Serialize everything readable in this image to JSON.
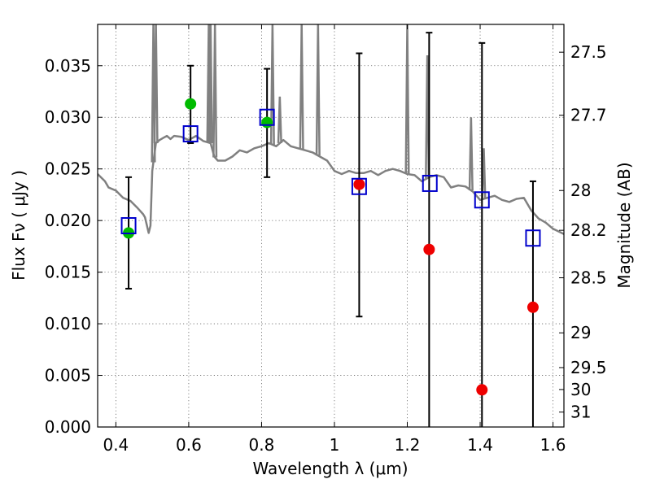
{
  "chart_data": {
    "type": "scatter",
    "title": "",
    "xlabel": "Wavelength  λ (μm)",
    "ylabel": "Flux  Fν  ( μJy )",
    "ylabel_right": "Magnitude (AB)",
    "xlim": [
      0.35,
      1.63
    ],
    "ylim": [
      0.0,
      0.039
    ],
    "grid": true,
    "x_ticks": [
      0.4,
      0.6,
      0.8,
      1.0,
      1.2,
      1.4,
      1.6
    ],
    "x_tick_labels": [
      "0.4",
      "0.6",
      "0.8",
      "1",
      "1.2",
      "1.4",
      "1.6"
    ],
    "y_ticks": [
      0.0,
      0.005,
      0.01,
      0.015,
      0.02,
      0.025,
      0.03,
      0.035
    ],
    "y_tick_labels": [
      "0.000",
      "0.005",
      "0.010",
      "0.015",
      "0.020",
      "0.025",
      "0.030",
      "0.035"
    ],
    "mag_ticks": [
      {
        "label": "27.5",
        "mag": 27.5
      },
      {
        "label": "27.7",
        "mag": 27.7
      },
      {
        "label": "28",
        "mag": 28.0
      },
      {
        "label": "28.2",
        "mag": 28.2
      },
      {
        "label": "28.5",
        "mag": 28.5
      },
      {
        "label": "29",
        "mag": 29.0
      },
      {
        "label": "29.5",
        "mag": 29.5
      },
      {
        "label": "30",
        "mag": 30.0
      },
      {
        "label": "31",
        "mag": 31.0
      }
    ],
    "colors": {
      "model": "#808080",
      "observed_green": "#00bb00",
      "observed_red": "#ee0000",
      "synthetic": "#0000cc",
      "errorbar": "#000000"
    },
    "series": [
      {
        "name": "model spectrum",
        "kind": "line",
        "x": [
          0.35,
          0.37,
          0.38,
          0.4,
          0.42,
          0.44,
          0.46,
          0.475,
          0.48,
          0.49,
          0.495,
          0.5,
          0.505,
          0.51,
          0.52,
          0.53,
          0.54,
          0.55,
          0.56,
          0.58,
          0.6,
          0.62,
          0.64,
          0.65,
          0.66,
          0.67,
          0.68,
          0.7,
          0.72,
          0.74,
          0.76,
          0.78,
          0.8,
          0.82,
          0.84,
          0.86,
          0.88,
          0.9,
          0.92,
          0.94,
          0.96,
          0.98,
          1.0,
          1.02,
          1.04,
          1.06,
          1.08,
          1.1,
          1.12,
          1.14,
          1.16,
          1.18,
          1.2,
          1.22,
          1.24,
          1.26,
          1.28,
          1.3,
          1.32,
          1.34,
          1.36,
          1.38,
          1.4,
          1.42,
          1.44,
          1.46,
          1.48,
          1.5,
          1.52,
          1.54,
          1.56,
          1.58,
          1.6,
          1.63
        ],
        "y": [
          0.0245,
          0.0238,
          0.0232,
          0.0229,
          0.0222,
          0.0219,
          0.0212,
          0.0206,
          0.0203,
          0.0188,
          0.0195,
          0.0248,
          0.0262,
          0.0275,
          0.0278,
          0.028,
          0.0282,
          0.0279,
          0.0282,
          0.0281,
          0.0278,
          0.0282,
          0.0277,
          0.0276,
          0.0275,
          0.0262,
          0.0258,
          0.0258,
          0.0262,
          0.0268,
          0.0266,
          0.027,
          0.0272,
          0.0275,
          0.0272,
          0.0278,
          0.0272,
          0.027,
          0.0268,
          0.0266,
          0.0262,
          0.0258,
          0.0248,
          0.0245,
          0.0248,
          0.0246,
          0.0246,
          0.0248,
          0.0244,
          0.0248,
          0.025,
          0.0248,
          0.0245,
          0.0244,
          0.0238,
          0.0242,
          0.0244,
          0.0242,
          0.0232,
          0.0234,
          0.0233,
          0.0228,
          0.022,
          0.0222,
          0.0224,
          0.022,
          0.0218,
          0.0221,
          0.0222,
          0.021,
          0.0202,
          0.0198,
          0.0192,
          0.0187
        ]
      },
      {
        "name": "emission lines",
        "kind": "spikes",
        "x": [
          0.503,
          0.51,
          0.655,
          0.66,
          0.672,
          0.83,
          0.85,
          0.91,
          0.955,
          1.2,
          1.255,
          1.375,
          1.41
        ],
        "y": [
          0.039,
          0.039,
          0.039,
          0.039,
          0.039,
          0.039,
          0.032,
          0.039,
          0.039,
          0.039,
          0.036,
          0.03,
          0.027
        ]
      },
      {
        "name": "green points",
        "kind": "points",
        "x": [
          0.435,
          0.605,
          0.815
        ],
        "y": [
          0.0188,
          0.0313,
          0.0295
        ],
        "yerr_low": [
          0.0134,
          0.0275,
          0.0242
        ],
        "yerr_high": [
          0.0242,
          0.035,
          0.0347
        ]
      },
      {
        "name": "red points",
        "kind": "points",
        "x": [
          1.068,
          1.26,
          1.405,
          1.545
        ],
        "y": [
          0.0235,
          0.0172,
          0.0036,
          0.0116
        ],
        "yerr_low": [
          0.0107,
          0.0,
          0.0,
          0.0
        ],
        "yerr_high": [
          0.0362,
          0.0382,
          0.0372,
          0.0238
        ]
      },
      {
        "name": "model photometry",
        "kind": "squares",
        "x": [
          0.435,
          0.605,
          0.815,
          1.068,
          1.262,
          1.405,
          1.545
        ],
        "y": [
          0.0195,
          0.0284,
          0.03,
          0.0233,
          0.0236,
          0.022,
          0.0183
        ]
      }
    ]
  }
}
